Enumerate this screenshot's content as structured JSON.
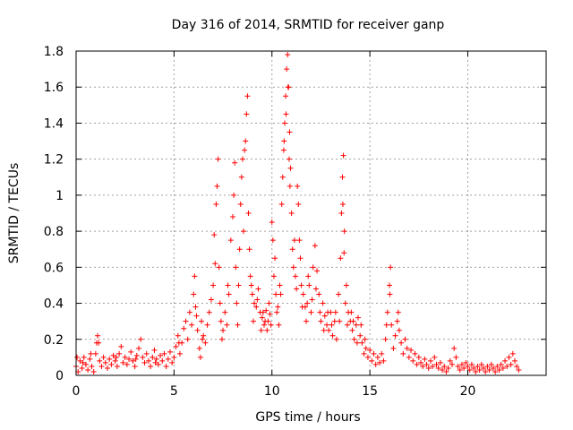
{
  "chart_data": {
    "type": "scatter",
    "title": "Day 316 of 2014, SRMTID for receiver ganp",
    "xlabel": "GPS time / hours",
    "ylabel": "SRMTID / TECUs",
    "xlim": [
      0,
      24
    ],
    "ylim": [
      0,
      1.8
    ],
    "xticks": [
      0,
      5,
      10,
      15,
      20
    ],
    "xtick_labels": [
      "0",
      "5",
      "10",
      "15",
      "20"
    ],
    "yticks": [
      0,
      0.2,
      0.4,
      0.6,
      0.8,
      1,
      1.2,
      1.4,
      1.6,
      1.8
    ],
    "ytick_labels": [
      "0",
      "0.2",
      "0.4",
      "0.6",
      "0.8",
      "1",
      "1.2",
      "1.4",
      "1.6",
      "1.8"
    ],
    "grid": true,
    "marker": "+",
    "color": "#ff0000",
    "series": [
      {
        "name": "SRMTID",
        "points": [
          [
            0.0,
            0.05
          ],
          [
            0.1,
            0.02
          ],
          [
            0.2,
            0.08
          ],
          [
            0.3,
            0.04
          ],
          [
            0.4,
            0.1
          ],
          [
            0.5,
            0.06
          ],
          [
            0.6,
            0.03
          ],
          [
            0.7,
            0.09
          ],
          [
            0.8,
            0.05
          ],
          [
            0.9,
            0.02
          ],
          [
            1.0,
            0.12
          ],
          [
            1.1,
            0.22
          ],
          [
            1.15,
            0.18
          ],
          [
            1.2,
            0.08
          ],
          [
            1.3,
            0.05
          ],
          [
            1.4,
            0.1
          ],
          [
            1.5,
            0.07
          ],
          [
            1.6,
            0.04
          ],
          [
            1.7,
            0.09
          ],
          [
            1.8,
            0.06
          ],
          [
            1.9,
            0.11
          ],
          [
            2.0,
            0.08
          ],
          [
            2.1,
            0.05
          ],
          [
            2.2,
            0.12
          ],
          [
            2.3,
            0.16
          ],
          [
            2.4,
            0.07
          ],
          [
            2.5,
            0.1
          ],
          [
            2.6,
            0.06
          ],
          [
            2.7,
            0.09
          ],
          [
            2.8,
            0.13
          ],
          [
            2.9,
            0.08
          ],
          [
            3.0,
            0.05
          ],
          [
            3.1,
            0.11
          ],
          [
            3.2,
            0.15
          ],
          [
            3.3,
            0.2
          ],
          [
            3.4,
            0.1
          ],
          [
            3.5,
            0.07
          ],
          [
            3.6,
            0.12
          ],
          [
            3.7,
            0.08
          ],
          [
            3.8,
            0.05
          ],
          [
            3.9,
            0.1
          ],
          [
            4.0,
            0.14
          ],
          [
            4.1,
            0.09
          ],
          [
            4.2,
            0.06
          ],
          [
            4.3,
            0.11
          ],
          [
            4.4,
            0.08
          ],
          [
            4.5,
            0.12
          ],
          [
            4.6,
            0.05
          ],
          [
            4.7,
            0.09
          ],
          [
            4.8,
            0.13
          ],
          [
            4.9,
            0.07
          ],
          [
            5.0,
            0.1
          ],
          [
            5.1,
            0.16
          ],
          [
            5.2,
            0.22
          ],
          [
            5.3,
            0.12
          ],
          [
            5.4,
            0.18
          ],
          [
            5.5,
            0.26
          ],
          [
            5.6,
            0.3
          ],
          [
            5.7,
            0.2
          ],
          [
            5.8,
            0.35
          ],
          [
            5.9,
            0.28
          ],
          [
            6.0,
            0.45
          ],
          [
            6.05,
            0.55
          ],
          [
            6.1,
            0.38
          ],
          [
            6.2,
            0.25
          ],
          [
            6.3,
            0.15
          ],
          [
            6.4,
            0.3
          ],
          [
            6.5,
            0.22
          ],
          [
            6.6,
            0.18
          ],
          [
            6.7,
            0.28
          ],
          [
            6.8,
            0.35
          ],
          [
            6.9,
            0.42
          ],
          [
            7.0,
            0.5
          ],
          [
            7.05,
            0.78
          ],
          [
            7.1,
            0.62
          ],
          [
            7.15,
            0.95
          ],
          [
            7.2,
            1.05
          ],
          [
            7.25,
            1.2
          ],
          [
            7.3,
            0.6
          ],
          [
            7.35,
            0.4
          ],
          [
            7.4,
            0.3
          ],
          [
            7.5,
            0.25
          ],
          [
            7.6,
            0.35
          ],
          [
            7.7,
            0.28
          ],
          [
            7.8,
            0.45
          ],
          [
            7.9,
            0.75
          ],
          [
            8.0,
            0.88
          ],
          [
            8.05,
            1.0
          ],
          [
            8.1,
            1.18
          ],
          [
            8.15,
            0.6
          ],
          [
            8.2,
            0.4
          ],
          [
            8.3,
            0.5
          ],
          [
            8.4,
            0.95
          ],
          [
            8.45,
            1.1
          ],
          [
            8.5,
            1.2
          ],
          [
            8.55,
            0.8
          ],
          [
            8.6,
            1.25
          ],
          [
            8.65,
            1.3
          ],
          [
            8.7,
            1.45
          ],
          [
            8.75,
            1.55
          ],
          [
            8.8,
            0.9
          ],
          [
            8.85,
            0.7
          ],
          [
            8.9,
            0.55
          ],
          [
            9.0,
            0.45
          ],
          [
            9.1,
            0.4
          ],
          [
            9.2,
            0.38
          ],
          [
            9.3,
            0.48
          ],
          [
            9.4,
            0.35
          ],
          [
            9.5,
            0.32
          ],
          [
            9.6,
            0.28
          ],
          [
            9.7,
            0.36
          ],
          [
            9.8,
            0.3
          ],
          [
            9.9,
            0.34
          ],
          [
            10.0,
            0.85
          ],
          [
            10.05,
            0.75
          ],
          [
            10.1,
            0.55
          ],
          [
            10.2,
            0.45
          ],
          [
            10.3,
            0.38
          ],
          [
            10.4,
            0.5
          ],
          [
            10.5,
            0.95
          ],
          [
            10.55,
            1.1
          ],
          [
            10.6,
            1.25
          ],
          [
            10.65,
            1.4
          ],
          [
            10.7,
            1.55
          ],
          [
            10.75,
            1.7
          ],
          [
            10.8,
            1.78
          ],
          [
            10.85,
            1.6
          ],
          [
            10.9,
            1.35
          ],
          [
            10.95,
            1.15
          ],
          [
            11.0,
            0.9
          ],
          [
            11.05,
            0.7
          ],
          [
            11.1,
            0.6
          ],
          [
            11.2,
            0.55
          ],
          [
            11.3,
            1.05
          ],
          [
            11.35,
            0.95
          ],
          [
            11.4,
            0.75
          ],
          [
            11.5,
            0.5
          ],
          [
            11.6,
            0.45
          ],
          [
            11.7,
            0.38
          ],
          [
            11.8,
            0.4
          ],
          [
            11.9,
            0.5
          ],
          [
            12.0,
            0.35
          ],
          [
            12.1,
            0.6
          ],
          [
            12.2,
            0.72
          ],
          [
            12.3,
            0.58
          ],
          [
            12.4,
            0.45
          ],
          [
            12.5,
            0.3
          ],
          [
            12.6,
            0.4
          ],
          [
            12.7,
            0.33
          ],
          [
            12.8,
            0.28
          ],
          [
            12.9,
            0.25
          ],
          [
            13.0,
            0.35
          ],
          [
            13.1,
            0.22
          ],
          [
            13.2,
            0.3
          ],
          [
            13.3,
            0.2
          ],
          [
            13.4,
            0.45
          ],
          [
            13.5,
            0.65
          ],
          [
            13.55,
            0.9
          ],
          [
            13.6,
            1.1
          ],
          [
            13.65,
            1.22
          ],
          [
            13.7,
            0.8
          ],
          [
            13.8,
            0.5
          ],
          [
            13.9,
            0.35
          ],
          [
            14.0,
            0.3
          ],
          [
            14.1,
            0.25
          ],
          [
            14.2,
            0.2
          ],
          [
            14.3,
            0.28
          ],
          [
            14.4,
            0.32
          ],
          [
            14.5,
            0.22
          ],
          [
            14.6,
            0.18
          ],
          [
            14.7,
            0.12
          ],
          [
            14.8,
            0.15
          ],
          [
            14.9,
            0.1
          ],
          [
            15.0,
            0.14
          ],
          [
            15.1,
            0.08
          ],
          [
            15.2,
            0.12
          ],
          [
            15.3,
            0.06
          ],
          [
            15.4,
            0.1
          ],
          [
            15.5,
            0.07
          ],
          [
            15.6,
            0.12
          ],
          [
            15.7,
            0.08
          ],
          [
            15.8,
            0.2
          ],
          [
            15.9,
            0.35
          ],
          [
            16.0,
            0.5
          ],
          [
            16.05,
            0.6
          ],
          [
            16.1,
            0.28
          ],
          [
            16.2,
            0.15
          ],
          [
            16.3,
            0.22
          ],
          [
            16.4,
            0.3
          ],
          [
            16.5,
            0.25
          ],
          [
            16.6,
            0.18
          ],
          [
            16.7,
            0.12
          ],
          [
            16.8,
            0.2
          ],
          [
            16.9,
            0.15
          ],
          [
            17.0,
            0.1
          ],
          [
            17.1,
            0.14
          ],
          [
            17.2,
            0.08
          ],
          [
            17.3,
            0.12
          ],
          [
            17.4,
            0.06
          ],
          [
            17.5,
            0.1
          ],
          [
            17.6,
            0.07
          ],
          [
            17.7,
            0.05
          ],
          [
            17.8,
            0.09
          ],
          [
            17.9,
            0.06
          ],
          [
            18.0,
            0.04
          ],
          [
            18.1,
            0.08
          ],
          [
            18.2,
            0.05
          ],
          [
            18.3,
            0.1
          ],
          [
            18.4,
            0.06
          ],
          [
            18.5,
            0.04
          ],
          [
            18.6,
            0.07
          ],
          [
            18.7,
            0.03
          ],
          [
            18.8,
            0.05
          ],
          [
            18.9,
            0.02
          ],
          [
            19.0,
            0.04
          ],
          [
            19.1,
            0.08
          ],
          [
            19.2,
            0.06
          ],
          [
            19.3,
            0.15
          ],
          [
            19.4,
            0.1
          ],
          [
            19.5,
            0.05
          ],
          [
            19.6,
            0.03
          ],
          [
            19.7,
            0.06
          ],
          [
            19.8,
            0.04
          ],
          [
            19.9,
            0.07
          ],
          [
            20.0,
            0.05
          ],
          [
            20.1,
            0.03
          ],
          [
            20.2,
            0.06
          ],
          [
            20.3,
            0.04
          ],
          [
            20.4,
            0.02
          ],
          [
            20.5,
            0.05
          ],
          [
            20.6,
            0.03
          ],
          [
            20.7,
            0.06
          ],
          [
            20.8,
            0.04
          ],
          [
            20.9,
            0.02
          ],
          [
            21.0,
            0.05
          ],
          [
            21.1,
            0.03
          ],
          [
            21.2,
            0.06
          ],
          [
            21.3,
            0.04
          ],
          [
            21.4,
            0.02
          ],
          [
            21.5,
            0.05
          ],
          [
            21.6,
            0.03
          ],
          [
            21.7,
            0.06
          ],
          [
            21.8,
            0.04
          ],
          [
            21.9,
            0.08
          ],
          [
            22.0,
            0.05
          ],
          [
            22.1,
            0.1
          ],
          [
            22.2,
            0.06
          ],
          [
            22.3,
            0.12
          ],
          [
            22.4,
            0.08
          ],
          [
            22.5,
            0.05
          ],
          [
            22.6,
            0.03
          ],
          [
            0.05,
            0.1
          ],
          [
            0.35,
            0.07
          ],
          [
            0.75,
            0.12
          ],
          [
            1.05,
            0.18
          ],
          [
            2.05,
            0.1
          ],
          [
            3.05,
            0.09
          ],
          [
            4.05,
            0.07
          ],
          [
            5.25,
            0.18
          ],
          [
            6.15,
            0.33
          ],
          [
            6.35,
            0.1
          ],
          [
            6.45,
            0.2
          ],
          [
            7.45,
            0.2
          ],
          [
            7.75,
            0.5
          ],
          [
            8.25,
            0.28
          ],
          [
            8.35,
            0.7
          ],
          [
            8.95,
            0.5
          ],
          [
            9.05,
            0.3
          ],
          [
            9.25,
            0.42
          ],
          [
            9.45,
            0.25
          ],
          [
            9.55,
            0.35
          ],
          [
            9.65,
            0.3
          ],
          [
            9.75,
            0.25
          ],
          [
            9.85,
            0.4
          ],
          [
            9.95,
            0.28
          ],
          [
            10.15,
            0.65
          ],
          [
            10.25,
            0.35
          ],
          [
            10.35,
            0.28
          ],
          [
            10.45,
            0.45
          ],
          [
            10.62,
            1.3
          ],
          [
            10.72,
            1.45
          ],
          [
            10.82,
            1.6
          ],
          [
            10.88,
            1.2
          ],
          [
            10.92,
            1.05
          ],
          [
            11.15,
            0.75
          ],
          [
            11.25,
            0.48
          ],
          [
            11.45,
            0.65
          ],
          [
            11.55,
            0.38
          ],
          [
            11.75,
            0.3
          ],
          [
            11.85,
            0.55
          ],
          [
            12.05,
            0.42
          ],
          [
            12.25,
            0.48
          ],
          [
            12.45,
            0.35
          ],
          [
            12.65,
            0.25
          ],
          [
            12.85,
            0.35
          ],
          [
            13.05,
            0.28
          ],
          [
            13.25,
            0.35
          ],
          [
            13.45,
            0.3
          ],
          [
            13.62,
            0.95
          ],
          [
            13.68,
            0.68
          ],
          [
            13.75,
            0.4
          ],
          [
            13.85,
            0.28
          ],
          [
            14.05,
            0.35
          ],
          [
            14.15,
            0.3
          ],
          [
            14.35,
            0.18
          ],
          [
            14.55,
            0.28
          ],
          [
            14.75,
            0.2
          ],
          [
            15.85,
            0.28
          ],
          [
            16.02,
            0.45
          ],
          [
            16.45,
            0.35
          ]
        ]
      }
    ]
  }
}
